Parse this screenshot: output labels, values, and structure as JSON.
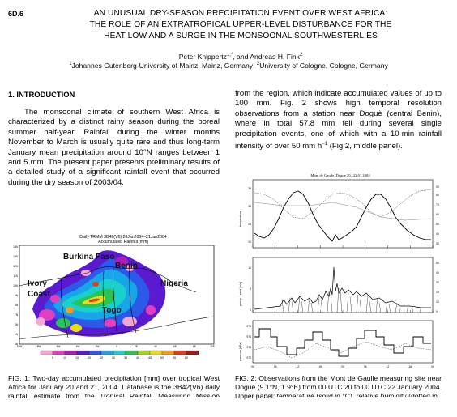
{
  "paper_id": "6D.6",
  "title_lines": [
    "AN UNUSUAL DRY-SEASON PRECIPITATION EVENT OVER WEST AFRICA:",
    "THE ROLE OF AN EXTRATROPICAL UPPER-LEVEL DISTURBANCE FOR THE",
    "HEAT LOW AND A SURGE IN THE MONSOONAL SOUTHWESTERLIES"
  ],
  "authors": {
    "a1": "Peter Knippertz",
    "a1_sup": "1,*",
    "sep": ", and ",
    "a2": "Andreas H. Fink",
    "a2_sup": "2"
  },
  "affiliations": {
    "sup1": "1",
    "aff1": "Johannes Gutenberg-University of Mainz, Mainz, Germany; ",
    "sup2": "2",
    "aff2": "University of Cologne, Cologne, Germany"
  },
  "section_heading": "1. INTRODUCTION",
  "intro_paragraph": "The monsoonal climate of southern West Africa is characterized by a distinct rainy season during the boreal summer half-year. Rainfall during the winter months November to March is usually quite rare and thus long-term January mean precipitation around 10°N ranges between 1 and 5 mm. The present paper presents preliminary results of a detailed study of a significant rainfall event that occurred during the dry season of 2003/04.",
  "right_paragraph": {
    "text": "from the region, which indicate accumulated values of up to 100 mm. Fig. 2 shows high temporal resolution observations from a station near Doguè (central Benin), where in total 57.8 mm fell during several single precipitation events, one of which with a 10-min rainfall intensity of over 50 mm h",
    "sup": "−1",
    "tail": " (Fig 2, middle panel)."
  },
  "figure1": {
    "title_line1": "Daily TRMM 3B42(V6) 20Jan2004–21Jan2004",
    "title_line2": "Accumulated Rainfall [mm]",
    "labels": {
      "burkina": "Burkina Faso",
      "benin": "Benin",
      "nigeria": "Nigeria",
      "ivory": "Ivory",
      "coast": "Coast",
      "togo": "Togo"
    },
    "x_ticks": [
      "10W",
      "8W",
      "6W",
      "4W",
      "2W",
      "0",
      "2E",
      "4E",
      "6E",
      "8E",
      "10E"
    ],
    "y_ticks": [
      "14N",
      "13N",
      "12N",
      "11N",
      "10N",
      "9N",
      "8N",
      "7N",
      "6N",
      "5N",
      "4N"
    ],
    "colorbar_ticks": [
      "5",
      "10",
      "15",
      "20",
      "25",
      "30",
      "35",
      "40",
      "45",
      "50",
      "55",
      "60"
    ],
    "colorbar_colors": [
      "#f4a6d6",
      "#e040c0",
      "#b01ab8",
      "#5a1ad0",
      "#2b59e8",
      "#17a6ea",
      "#1ad1c9",
      "#29c455",
      "#a6d61a",
      "#eadc1a",
      "#f59a1a",
      "#e83a1a",
      "#a31a1a"
    ]
  },
  "figure2": {
    "title": "Mont de Gaulle, Dogue 20.–22.01.2004",
    "top_left_axis": "temperature",
    "middle_left_axis": "precip. / wind [m/s]",
    "bottom_left_axis": "pressure [hPa]",
    "top_right_ticks": [
      "90",
      "80",
      "70",
      "60",
      "50",
      "40",
      "30"
    ],
    "top_left_ticks": [
      "35",
      "30",
      "25",
      "20"
    ],
    "mid_right_ticks": [
      "50",
      "40",
      "30",
      "20",
      "10",
      "0"
    ],
    "mid_left_ticks": [
      "10",
      "5",
      "0"
    ],
    "bottom_ticks": [
      "975",
      "974",
      "973",
      "972"
    ],
    "x_ticks": [
      "00",
      "06",
      "12",
      "18",
      "00",
      "06",
      "12",
      "18",
      "00"
    ]
  },
  "caption1": {
    "text": "FIG. 1:  Two-day accumulated precipitation [mm] over tropical West Africa for January 20 and 21, 2004. Database is the 3B42(V6) daily rainfall estimate from",
    "tail": "the Tropical Rainfall Measuring Mission (TRMM)"
  },
  "caption2": {
    "text": "FIG. 2:  Observations from the Mont de Gaulle measuring site near Doguè (9.1°N, 1.9°E) from 00 UTC 20 to 00 UTC 22 January 2004. Upper panel:",
    "tail": "temperature (solid in °C), relative humidity (dotted in"
  }
}
